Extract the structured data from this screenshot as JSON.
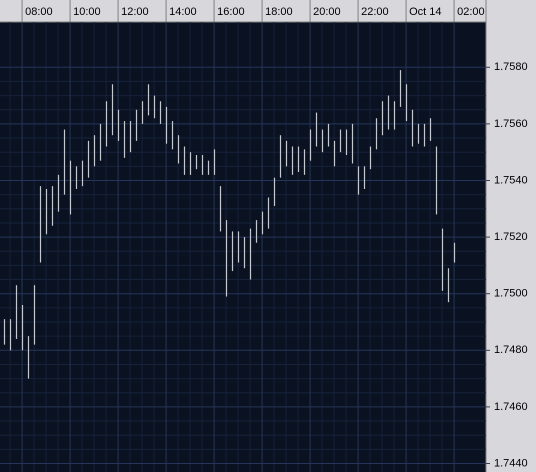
{
  "chart_data": {
    "type": "hilo",
    "x": [
      7.25,
      7.5,
      7.75,
      8,
      8.25,
      8.5,
      8.75,
      9,
      9.25,
      9.5,
      9.75,
      10,
      10.25,
      10.5,
      10.75,
      11,
      11.25,
      11.5,
      11.75,
      12,
      12.25,
      12.5,
      12.75,
      13,
      13.25,
      13.5,
      13.75,
      14,
      14.25,
      14.5,
      14.75,
      15,
      15.25,
      15.5,
      15.75,
      16,
      16.25,
      16.5,
      16.75,
      17,
      17.25,
      17.5,
      17.75,
      18,
      18.25,
      18.5,
      18.75,
      19,
      19.25,
      19.5,
      19.75,
      20,
      20.25,
      20.5,
      20.75,
      21,
      21.25,
      21.5,
      21.75,
      22,
      22.25,
      22.5,
      22.75,
      23,
      23.25,
      23.5,
      23.75,
      24,
      24.25,
      24.5,
      24.75,
      25,
      25.25,
      25.5,
      25.75,
      26
    ],
    "high": [
      1.7491,
      1.7491,
      1.7503,
      1.7496,
      1.7485,
      1.7503,
      1.7538,
      1.7537,
      1.7538,
      1.7542,
      1.7558,
      1.7547,
      1.7545,
      1.7547,
      1.7554,
      1.7556,
      1.756,
      1.7568,
      1.7574,
      1.7565,
      1.7561,
      1.7561,
      1.7565,
      1.7568,
      1.7574,
      1.757,
      1.7568,
      1.7566,
      1.7561,
      1.7556,
      1.7552,
      1.755,
      1.7549,
      1.7549,
      1.7547,
      1.7551,
      1.7538,
      1.7526,
      1.7522,
      1.7522,
      1.752,
      1.7523,
      1.7526,
      1.7529,
      1.7534,
      1.7541,
      1.7556,
      1.7554,
      1.7552,
      1.7552,
      1.7551,
      1.7558,
      1.7564,
      1.7558,
      1.756,
      1.7554,
      1.7558,
      1.7558,
      1.756,
      1.7545,
      1.7545,
      1.7552,
      1.7562,
      1.7568,
      1.757,
      1.7568,
      1.7579,
      1.7574,
      1.7565,
      1.756,
      1.756,
      1.7562,
      1.7552,
      1.7523,
      1.7509,
      1.7518
    ],
    "low": [
      1.7482,
      1.748,
      1.7484,
      1.748,
      1.747,
      1.7482,
      1.7511,
      1.7521,
      1.7524,
      1.7529,
      1.7535,
      1.7528,
      1.7537,
      1.7538,
      1.7541,
      1.7545,
      1.7547,
      1.7552,
      1.7556,
      1.7554,
      1.7548,
      1.755,
      1.7554,
      1.756,
      1.7563,
      1.7562,
      1.756,
      1.7553,
      1.7551,
      1.7546,
      1.7542,
      1.7542,
      1.7544,
      1.7542,
      1.7542,
      1.7542,
      1.7522,
      1.7499,
      1.7508,
      1.7511,
      1.7509,
      1.7505,
      1.7518,
      1.7521,
      1.7523,
      1.7531,
      1.7541,
      1.7545,
      1.7542,
      1.7543,
      1.7542,
      1.7547,
      1.7552,
      1.755,
      1.7552,
      1.7545,
      1.755,
      1.7549,
      1.7546,
      1.7535,
      1.7537,
      1.7544,
      1.7551,
      1.7556,
      1.7558,
      1.7558,
      1.7566,
      1.7561,
      1.7552,
      1.7553,
      1.7552,
      1.7554,
      1.7528,
      1.7501,
      1.7497,
      1.7511
    ],
    "color": "#c8c8c8",
    "xlim": [
      7.08,
      27.33
    ],
    "xticks": [
      {
        "value": 8,
        "label": "08:00"
      },
      {
        "value": 10,
        "label": "10:00"
      },
      {
        "value": 12,
        "label": "12:00"
      },
      {
        "value": 14,
        "label": "14:00"
      },
      {
        "value": 16,
        "label": "16:00"
      },
      {
        "value": 18,
        "label": "18:00"
      },
      {
        "value": 20,
        "label": "20:00"
      },
      {
        "value": 22,
        "label": "22:00"
      },
      {
        "value": 24,
        "label": "Oct 14"
      },
      {
        "value": 26,
        "label": "02:00"
      }
    ],
    "ylim": [
      1.7437,
      1.7596
    ],
    "yticks": [
      {
        "value": 1.744,
        "label": "1.7440"
      },
      {
        "value": 1.746,
        "label": "1.7460"
      },
      {
        "value": 1.748,
        "label": "1.7480"
      },
      {
        "value": 1.75,
        "label": "1.7500"
      },
      {
        "value": 1.752,
        "label": "1.7520"
      },
      {
        "value": 1.754,
        "label": "1.7540"
      },
      {
        "value": 1.756,
        "label": "1.7560"
      },
      {
        "value": 1.758,
        "label": "1.7580"
      }
    ],
    "grid": true
  }
}
